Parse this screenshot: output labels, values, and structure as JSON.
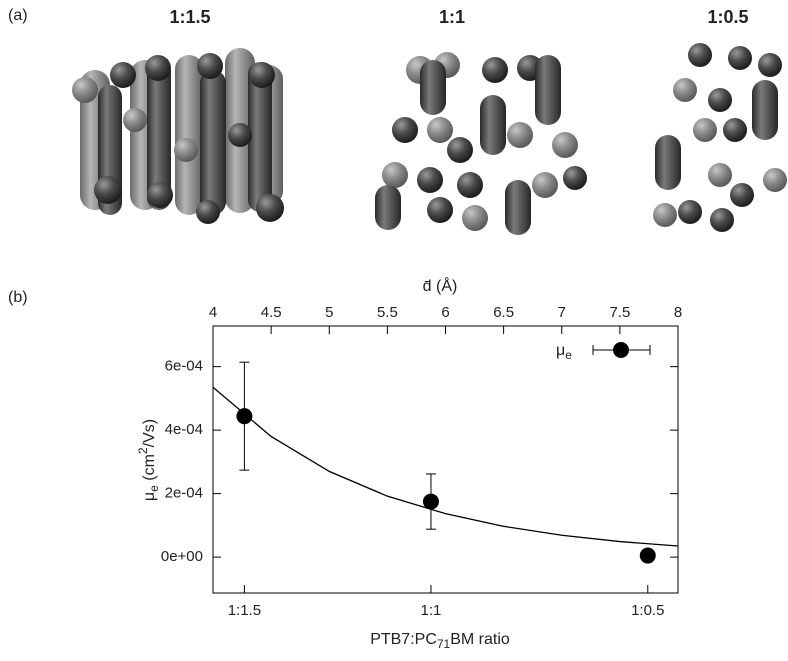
{
  "chart_data": {
    "type": "scatter",
    "panel_a_label": "(a)",
    "panel_b_label": "(b)",
    "structure_titles": [
      "1:1.5",
      "1:1",
      "1:0.5"
    ],
    "x_label_parts": [
      "PTB7:PC",
      "71",
      "BM ratio"
    ],
    "x2_label": "d̄ (Å)",
    "y_label_parts": [
      "μ",
      "e",
      " (cm",
      "2",
      "/Vs)"
    ],
    "xlim": [
      4,
      8
    ],
    "xticks": [
      {
        "value": 4.27,
        "label": "1:1.5"
      },
      {
        "value": 5.875,
        "label": "1:1"
      },
      {
        "value": 7.74,
        "label": "1:0.5"
      }
    ],
    "x2lim": [
      4,
      8
    ],
    "x2ticks": [
      4,
      4.5,
      5,
      5.5,
      6,
      6.5,
      7,
      7.5,
      8
    ],
    "ylim": [
      -0.000113,
      0.000728
    ],
    "yticks": [
      {
        "value": 0,
        "label": "0e+00"
      },
      {
        "value": 0.0002,
        "label": "2e-04"
      },
      {
        "value": 0.0004,
        "label": "4e-04"
      },
      {
        "value": 0.0006,
        "label": "6e-04"
      }
    ],
    "series": [
      {
        "name_parts": [
          "μ",
          "e"
        ],
        "color": "#000000",
        "x": [
          4.27,
          5.875,
          7.74
        ],
        "values": [
          0.000444,
          0.000175,
          5e-06
        ],
        "errors": [
          0.00017,
          8.7e-05,
          6e-06
        ]
      }
    ],
    "fit": {
      "color": "#000000",
      "x": [
        4,
        4.5,
        5,
        5.5,
        6,
        6.5,
        7,
        7.5,
        8
      ],
      "values": [
        0.000535,
        0.00038,
        0.00027,
        0.000192,
        0.000137,
        9.7e-05,
        6.9e-05,
        4.9e-05,
        3.5e-05
      ]
    },
    "legend": "top-right"
  }
}
